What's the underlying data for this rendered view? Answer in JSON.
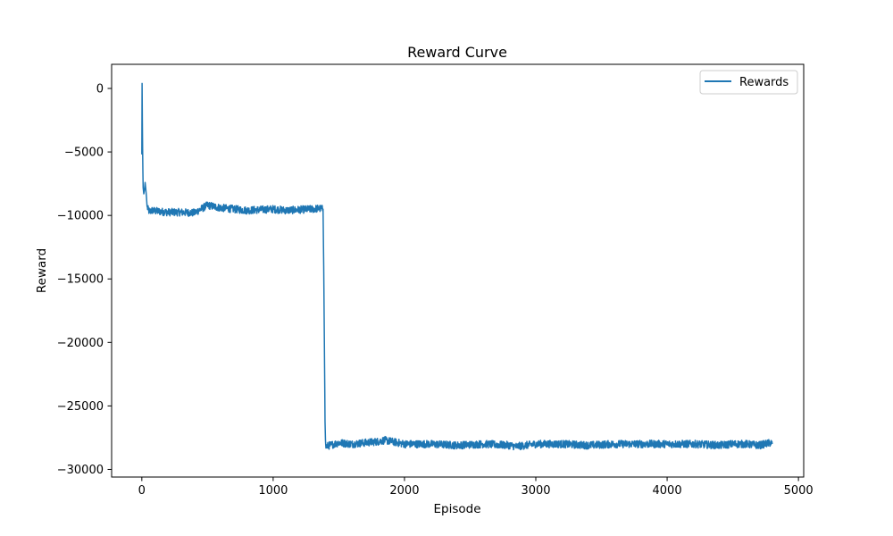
{
  "chart_data": {
    "type": "line",
    "title": "Reward Curve",
    "xlabel": "Episode",
    "ylabel": "Reward",
    "xlim": [
      -230,
      5040
    ],
    "ylim": [
      -30600,
      1900
    ],
    "xticks": [
      0,
      1000,
      2000,
      3000,
      4000,
      5000
    ],
    "xtick_labels": [
      "0",
      "1000",
      "2000",
      "3000",
      "4000",
      "5000"
    ],
    "yticks": [
      0,
      -5000,
      -10000,
      -15000,
      -20000,
      -25000,
      -30000
    ],
    "ytick_labels": [
      "0",
      "−5000",
      "−10000",
      "−15000",
      "−20000",
      "−25000",
      "−30000"
    ],
    "grid": false,
    "legend_position": "top-right",
    "series": [
      {
        "name": "Rewards",
        "color": "#1f77b4",
        "x": [
          0,
          2,
          4,
          6,
          8,
          10,
          15,
          20,
          25,
          30,
          35,
          40,
          50,
          60,
          80,
          100,
          150,
          200,
          300,
          400,
          450,
          500,
          550,
          600,
          700,
          800,
          900,
          1000,
          1100,
          1200,
          1300,
          1350,
          1380,
          1385,
          1390,
          1395,
          1400,
          1500,
          1600,
          1700,
          1800,
          1850,
          1900,
          2000,
          2200,
          2400,
          2600,
          2800,
          2850,
          3000,
          3200,
          3400,
          3600,
          3800,
          4000,
          4200,
          4400,
          4500,
          4600,
          4700,
          4790,
          4800
        ],
        "y": [
          -5200,
          400,
          -2500,
          -4800,
          -6500,
          -7800,
          -8300,
          -8000,
          -7400,
          -7900,
          -8500,
          -9300,
          -9600,
          -9700,
          -9600,
          -9650,
          -9700,
          -9750,
          -9750,
          -9800,
          -9500,
          -9200,
          -9300,
          -9400,
          -9500,
          -9600,
          -9550,
          -9500,
          -9600,
          -9550,
          -9500,
          -9450,
          -9500,
          -14000,
          -20000,
          -26000,
          -28200,
          -27900,
          -28000,
          -27900,
          -27800,
          -27700,
          -27800,
          -28000,
          -28000,
          -28100,
          -28000,
          -28100,
          -28200,
          -28000,
          -28000,
          -28100,
          -28000,
          -28000,
          -28000,
          -28000,
          -28100,
          -28000,
          -28000,
          -28100,
          -27900,
          -28000
        ],
        "noise_amplitude_reward": 300
      }
    ]
  }
}
